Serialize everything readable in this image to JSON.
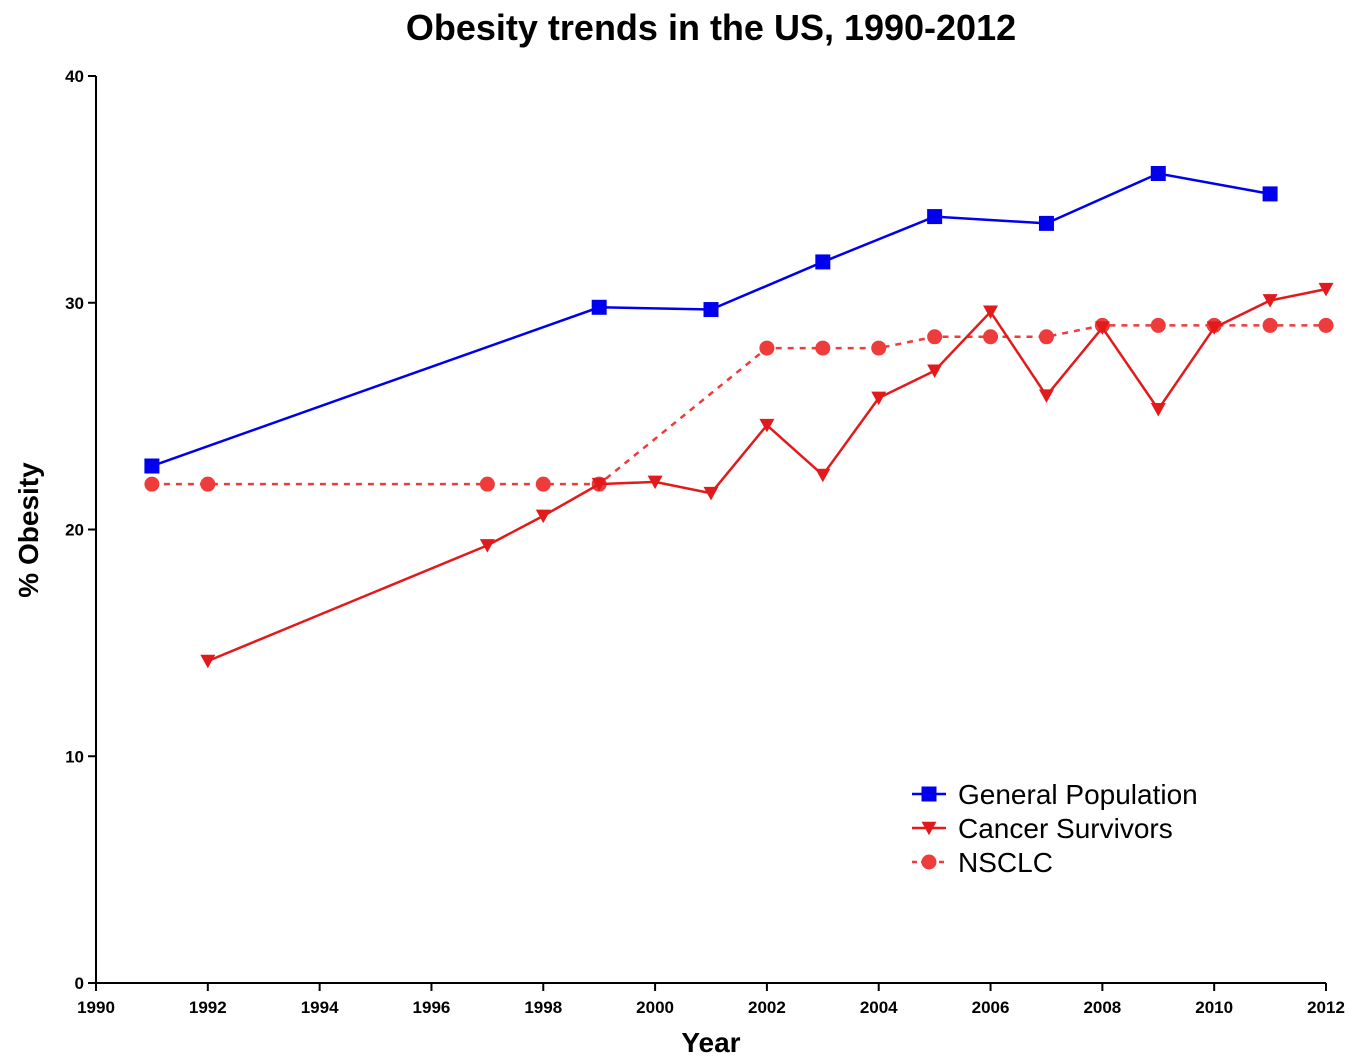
{
  "chart_data": {
    "type": "line",
    "title": "Obesity trends in the US, 1990-2012",
    "xlabel": "Year",
    "ylabel": "% Obesity",
    "xlim": [
      1990,
      2012
    ],
    "ylim": [
      0,
      40
    ],
    "xticks": [
      1990,
      1992,
      1994,
      1996,
      1998,
      2000,
      2002,
      2004,
      2006,
      2008,
      2010,
      2012
    ],
    "yticks": [
      0,
      10,
      20,
      30,
      40
    ],
    "grid": false,
    "legend_position": "bottom-right",
    "series": [
      {
        "name": "General Population",
        "color": "#0000ee",
        "marker": "square",
        "line": "solid",
        "points": [
          [
            1991,
            22.8
          ],
          [
            1999,
            29.8
          ],
          [
            2001,
            29.7
          ],
          [
            2003,
            31.8
          ],
          [
            2005,
            33.8
          ],
          [
            2007,
            33.5
          ],
          [
            2009,
            35.7
          ],
          [
            2011,
            34.8
          ]
        ]
      },
      {
        "name": "Cancer Survivors",
        "color": "#e31a1c",
        "marker": "triangle-down",
        "line": "solid",
        "points": [
          [
            1992,
            14.2
          ],
          [
            1997,
            19.3
          ],
          [
            1998,
            20.6
          ],
          [
            1999,
            22.0
          ],
          [
            2000,
            22.1
          ],
          [
            2001,
            21.6
          ],
          [
            2002,
            24.6
          ],
          [
            2003,
            22.4
          ],
          [
            2004,
            25.8
          ],
          [
            2005,
            27.0
          ],
          [
            2006,
            29.6
          ],
          [
            2007,
            25.9
          ],
          [
            2008,
            28.9
          ],
          [
            2009,
            25.3
          ],
          [
            2010,
            28.9
          ],
          [
            2011,
            30.1
          ],
          [
            2012,
            30.6
          ]
        ]
      },
      {
        "name": "NSCLC",
        "color": "#ee3b3b",
        "marker": "circle",
        "line": "dashed",
        "points": [
          [
            1991,
            22.0
          ],
          [
            1992,
            22.0
          ],
          [
            1997,
            22.0
          ],
          [
            1998,
            22.0
          ],
          [
            1999,
            22.0
          ],
          [
            2002,
            28.0
          ],
          [
            2003,
            28.0
          ],
          [
            2004,
            28.0
          ],
          [
            2005,
            28.5
          ],
          [
            2006,
            28.5
          ],
          [
            2007,
            28.5
          ],
          [
            2008,
            29.0
          ],
          [
            2009,
            29.0
          ],
          [
            2010,
            29.0
          ],
          [
            2011,
            29.0
          ],
          [
            2012,
            29.0
          ]
        ]
      }
    ]
  }
}
